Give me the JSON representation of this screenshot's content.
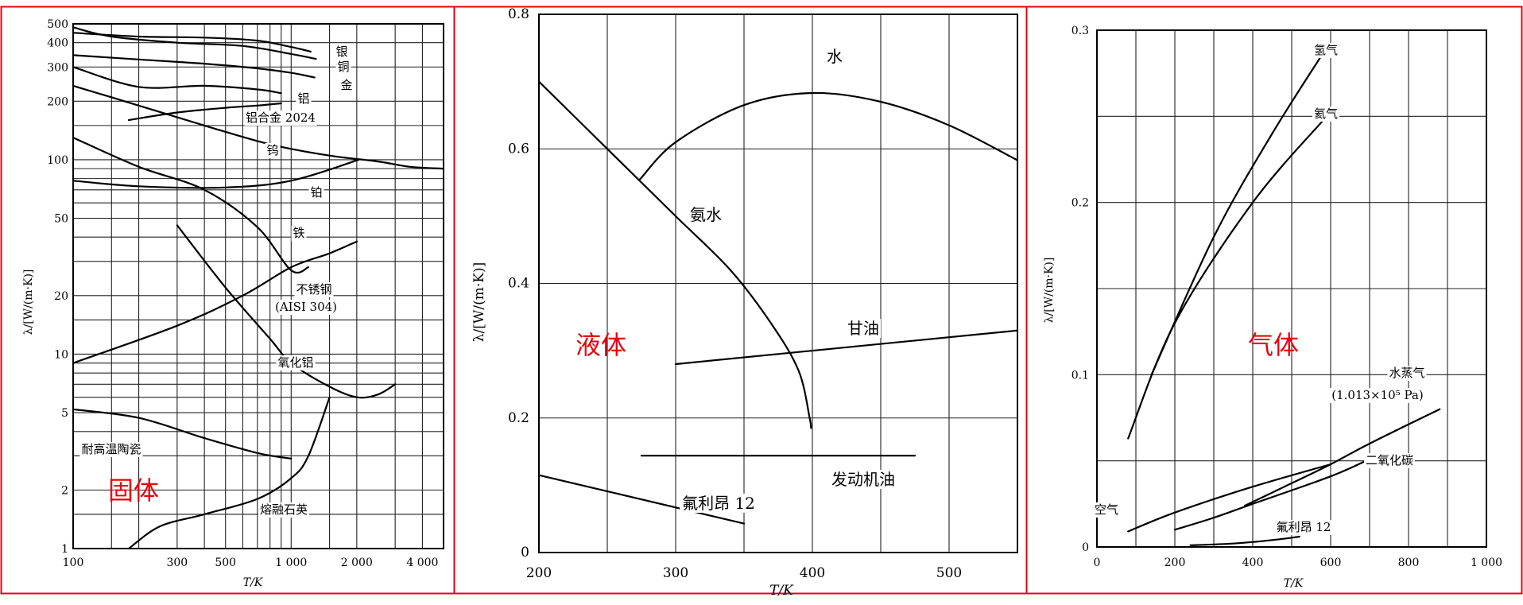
{
  "chart_data": [
    {
      "type": "line",
      "xscale": "log",
      "yscale": "log",
      "xlabel": "T/K",
      "ylabel": "λ/[W/(m·K)]",
      "xlim": [
        100,
        5000
      ],
      "ylim": [
        1,
        500
      ],
      "xtick_values": [
        100,
        300,
        500,
        1000,
        2000,
        4000
      ],
      "xtick_labels": [
        "100",
        "300",
        "500",
        "1 000",
        "2 000",
        "4 000"
      ],
      "ytick_values": [
        1,
        2,
        5,
        10,
        20,
        50,
        100,
        200,
        300,
        400,
        500
      ],
      "ytick_labels": [
        "1",
        "2",
        "5",
        "10",
        "20",
        "50",
        "100",
        "200",
        "300",
        "400",
        "500"
      ],
      "grid": true,
      "watermark": "固体",
      "watermark_color": "#e8000b",
      "series": [
        {
          "name": "银",
          "points": [
            [
              100,
              450
            ],
            [
              200,
              430
            ],
            [
              400,
              425
            ],
            [
              700,
              410
            ],
            [
              1000,
              380
            ],
            [
              1230,
              360
            ]
          ]
        },
        {
          "name": "铜",
          "points": [
            [
              100,
              480
            ],
            [
              150,
              430
            ],
            [
              300,
              400
            ],
            [
              600,
              385
            ],
            [
              1000,
              350
            ],
            [
              1300,
              330
            ]
          ]
        },
        {
          "name": "金",
          "points": [
            [
              100,
              345
            ],
            [
              200,
              328
            ],
            [
              400,
              312
            ],
            [
              700,
              295
            ],
            [
              1000,
              280
            ],
            [
              1280,
              265
            ]
          ]
        },
        {
          "name": "铝",
          "points": [
            [
              100,
              300
            ],
            [
              200,
              237
            ],
            [
              400,
              240
            ],
            [
              700,
              230
            ],
            [
              900,
              220
            ]
          ]
        },
        {
          "name": "铝合金 2024",
          "points": [
            [
              180,
              160
            ],
            [
              300,
              175
            ],
            [
              500,
              185
            ],
            [
              700,
              190
            ],
            [
              900,
              195
            ]
          ]
        },
        {
          "name": "钨",
          "points": [
            [
              100,
              240
            ],
            [
              200,
              190
            ],
            [
              400,
              150
            ],
            [
              800,
              120
            ],
            [
              1500,
              105
            ],
            [
              2500,
              98
            ],
            [
              3500,
              92
            ],
            [
              5000,
              90
            ]
          ]
        },
        {
          "name": "铂",
          "points": [
            [
              100,
              78
            ],
            [
              200,
              73
            ],
            [
              500,
              72
            ],
            [
              1000,
              78
            ],
            [
              2044,
              100
            ]
          ]
        },
        {
          "name": "铁",
          "points": [
            [
              100,
              130
            ],
            [
              200,
              92
            ],
            [
              400,
              70
            ],
            [
              700,
              45
            ],
            [
              1000,
              27
            ],
            [
              1200,
              28
            ]
          ]
        },
        {
          "name": "不锈钢 (AISI 304)",
          "points": [
            [
              100,
              9
            ],
            [
              300,
              14
            ],
            [
              600,
              20
            ],
            [
              1000,
              28
            ],
            [
              1500,
              33
            ],
            [
              2000,
              38
            ]
          ]
        },
        {
          "name": "氧化铝",
          "points": [
            [
              300,
              46
            ],
            [
              500,
              22
            ],
            [
              800,
              12
            ],
            [
              1000,
              9
            ],
            [
              1500,
              6.8
            ],
            [
              2000,
              6
            ],
            [
              2500,
              6.2
            ],
            [
              3000,
              7
            ]
          ]
        },
        {
          "name": "耐高温陶瓷",
          "points": [
            [
              100,
              5.2
            ],
            [
              200,
              4.7
            ],
            [
              400,
              3.7
            ],
            [
              700,
              3.1
            ],
            [
              1000,
              2.9
            ]
          ]
        },
        {
          "name": "熔融石英",
          "points": [
            [
              180,
              1
            ],
            [
              250,
              1.3
            ],
            [
              400,
              1.5
            ],
            [
              700,
              1.8
            ],
            [
              1000,
              2.3
            ],
            [
              1200,
              3
            ],
            [
              1500,
              6
            ]
          ]
        }
      ],
      "labels": [
        "银",
        "铜",
        "金",
        "铝",
        "铝合金 2024",
        "钨",
        "铂",
        "铁",
        "不锈钢",
        "(AISI 304)",
        "氧化铝",
        "耐高温陶瓷",
        "熔融石英"
      ]
    },
    {
      "type": "line",
      "xlabel": "T/K",
      "ylabel": "λ/[W/(m·K)]",
      "xlim": [
        200,
        550
      ],
      "ylim": [
        0,
        0.8
      ],
      "xticks": [
        "200",
        "300",
        "400",
        "500"
      ],
      "xtick_values": [
        200,
        300,
        400,
        500
      ],
      "yticks": [
        "0",
        "0.2",
        "0.4",
        "0.6",
        "0.8"
      ],
      "ytick_values": [
        0,
        0.2,
        0.4,
        0.6,
        0.8
      ],
      "grid": true,
      "watermark": "液体",
      "watermark_color": "#e8000b",
      "series": [
        {
          "name": "水",
          "points": [
            [
              274,
              0.555
            ],
            [
              300,
              0.61
            ],
            [
              350,
              0.665
            ],
            [
              400,
              0.683
            ],
            [
              450,
              0.67
            ],
            [
              500,
              0.635
            ],
            [
              550,
              0.583
            ]
          ]
        },
        {
          "name": "氨水",
          "points": [
            [
              200,
              0.7
            ],
            [
              250,
              0.6
            ],
            [
              300,
              0.5
            ],
            [
              340,
              0.42
            ],
            [
              370,
              0.34
            ],
            [
              390,
              0.27
            ],
            [
              398,
              0.2
            ],
            [
              399,
              0.185
            ]
          ]
        },
        {
          "name": "甘油",
          "points": [
            [
              300,
              0.28
            ],
            [
              550,
              0.33
            ]
          ]
        },
        {
          "name": "发动机油",
          "points": [
            [
              275,
              0.144
            ],
            [
              475,
              0.144
            ]
          ]
        },
        {
          "name": "氟利昂 12",
          "points": [
            [
              200,
              0.115
            ],
            [
              350,
              0.043
            ]
          ]
        }
      ],
      "labels": [
        "水",
        "氨水",
        "甘油",
        "发动机油",
        "氟利昂 12"
      ]
    },
    {
      "type": "line",
      "xlabel": "T/K",
      "ylabel": "λ/[W/(m·K)]",
      "xlim": [
        0,
        1000
      ],
      "ylim": [
        0,
        0.3
      ],
      "xticks": [
        "0",
        "200",
        "400",
        "600",
        "800",
        "1 000"
      ],
      "xtick_values": [
        0,
        200,
        400,
        600,
        800,
        1000
      ],
      "yticks": [
        "0",
        "0.1",
        "0.2",
        "0.3"
      ],
      "ytick_values": [
        0,
        0.1,
        0.2,
        0.3
      ],
      "grid": true,
      "watermark": "气体",
      "watermark_color": "#e8000b",
      "series": [
        {
          "name": "氢气",
          "points": [
            [
              140,
              0.1
            ],
            [
              300,
              0.18
            ],
            [
              450,
              0.24
            ],
            [
              590,
              0.29
            ]
          ]
        },
        {
          "name": "氦气",
          "points": [
            [
              80,
              0.063
            ],
            [
              200,
              0.13
            ],
            [
              400,
              0.2
            ],
            [
              590,
              0.25
            ]
          ]
        },
        {
          "name": "水蒸气 (1.013×10⁵ Pa)",
          "points": [
            [
              380,
              0.024
            ],
            [
              500,
              0.037
            ],
            [
              600,
              0.048
            ],
            [
              700,
              0.06
            ],
            [
              880,
              0.08
            ]
          ]
        },
        {
          "name": "二氧化碳",
          "points": [
            [
              200,
              0.01
            ],
            [
              300,
              0.017
            ],
            [
              400,
              0.025
            ],
            [
              600,
              0.041
            ],
            [
              700,
              0.051
            ]
          ]
        },
        {
          "name": "空气",
          "points": [
            [
              80,
              0.009
            ],
            [
              200,
              0.02
            ],
            [
              400,
              0.035
            ],
            [
              600,
              0.048
            ]
          ]
        },
        {
          "name": "氟利昂 12",
          "points": [
            [
              240,
              0.001
            ],
            [
              350,
              0.002
            ],
            [
              450,
              0.004
            ],
            [
              520,
              0.006
            ]
          ]
        }
      ],
      "labels": [
        "氢气",
        "氦气",
        "水蒸气",
        "(1.013×10⁵ Pa)",
        "二氧化碳",
        "空气",
        "氟利昂 12"
      ]
    }
  ]
}
